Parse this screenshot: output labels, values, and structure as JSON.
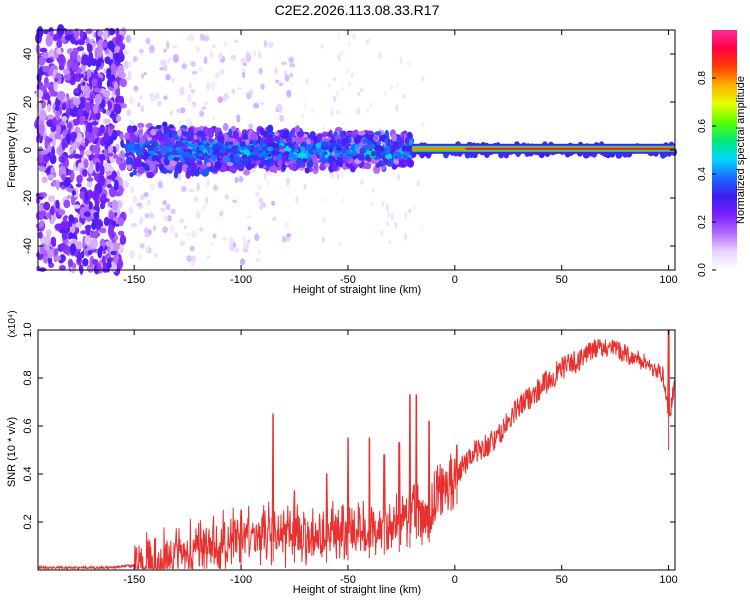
{
  "title": "C2E2.2026.113.08.33.R17",
  "chart_data": [
    {
      "type": "heatmap",
      "xlabel": "Height of straight line (km)",
      "ylabel": "Frequency (Hz)",
      "xlim": [
        -195,
        103
      ],
      "ylim": [
        -50,
        50
      ],
      "xticks": [
        -150,
        -100,
        -50,
        0,
        50,
        100
      ],
      "yticks": [
        -40,
        -20,
        0,
        20,
        40
      ],
      "colorbar": {
        "label": "Normalized spectral amplitude",
        "range": [
          0,
          1
        ],
        "ticks": [
          "0.0",
          "0.2",
          "0.4",
          "0.6",
          "0.8"
        ],
        "colors": [
          "#ffffff",
          "#e8d4ff",
          "#b26bff",
          "#7a1fff",
          "#3b1ef0",
          "#1a6bff",
          "#00d8ff",
          "#00e878",
          "#5cff00",
          "#e8ff00",
          "#ffb000",
          "#ff4000",
          "#ff0040",
          "#ff2d9c"
        ]
      },
      "description_points": [
        {
          "x": -195,
          "level": "noise-dense",
          "freq_spread": 50
        },
        {
          "x": -155,
          "level": "noise-sparse",
          "freq_spread": 40
        },
        {
          "x": -150,
          "level": "band",
          "freq_spread": 10
        },
        {
          "x": -22,
          "level": "band",
          "freq_spread": 8
        },
        {
          "x": -20,
          "level": "line",
          "freq_spread": 2
        },
        {
          "x": 103,
          "level": "line",
          "freq_spread": 1
        }
      ]
    },
    {
      "type": "line",
      "xlabel": "Height of straight line (km)",
      "ylabel": "SNR (10 * v/v)",
      "scale_note": "(x10⁴)",
      "xlim": [
        -195,
        103
      ],
      "ylim": [
        0,
        1.0
      ],
      "xticks": [
        -150,
        -100,
        -50,
        0,
        50,
        100
      ],
      "yticks": [
        0.2,
        0.4,
        0.6,
        0.8,
        1.0
      ],
      "series": [
        {
          "color": "#e8302e",
          "x": [
            -195,
            -160,
            -150,
            -140,
            -130,
            -120,
            -110,
            -100,
            -90,
            -80,
            -70,
            -60,
            -50,
            -40,
            -30,
            -22,
            -18,
            -14,
            -10,
            -5,
            0,
            5,
            10,
            15,
            20,
            25,
            30,
            35,
            40,
            45,
            50,
            55,
            60,
            65,
            70,
            75,
            80,
            85,
            90,
            95,
            98,
            100,
            103
          ],
          "values": [
            0.01,
            0.01,
            0.02,
            0.03,
            0.05,
            0.08,
            0.12,
            0.13,
            0.15,
            0.16,
            0.14,
            0.15,
            0.16,
            0.17,
            0.19,
            0.2,
            0.25,
            0.17,
            0.3,
            0.35,
            0.38,
            0.45,
            0.5,
            0.52,
            0.55,
            0.62,
            0.68,
            0.72,
            0.76,
            0.8,
            0.84,
            0.86,
            0.89,
            0.92,
            0.93,
            0.92,
            0.9,
            0.88,
            0.86,
            0.83,
            0.8,
            0.62,
            0.78
          ]
        }
      ],
      "spikes": [
        {
          "x": -100,
          "value": 0.25
        },
        {
          "x": -85,
          "value": 0.65
        },
        {
          "x": -75,
          "value": 0.33
        },
        {
          "x": -60,
          "value": 0.4
        },
        {
          "x": -50,
          "value": 0.55
        },
        {
          "x": -40,
          "value": 0.55
        },
        {
          "x": -33,
          "value": 0.48
        },
        {
          "x": -26,
          "value": 0.53
        },
        {
          "x": -21,
          "value": 0.73
        },
        {
          "x": -18,
          "value": 0.73
        },
        {
          "x": -12,
          "value": 0.62
        },
        {
          "x": 1,
          "value": 0.52
        },
        {
          "x": 100,
          "value": 1.0
        }
      ]
    }
  ]
}
